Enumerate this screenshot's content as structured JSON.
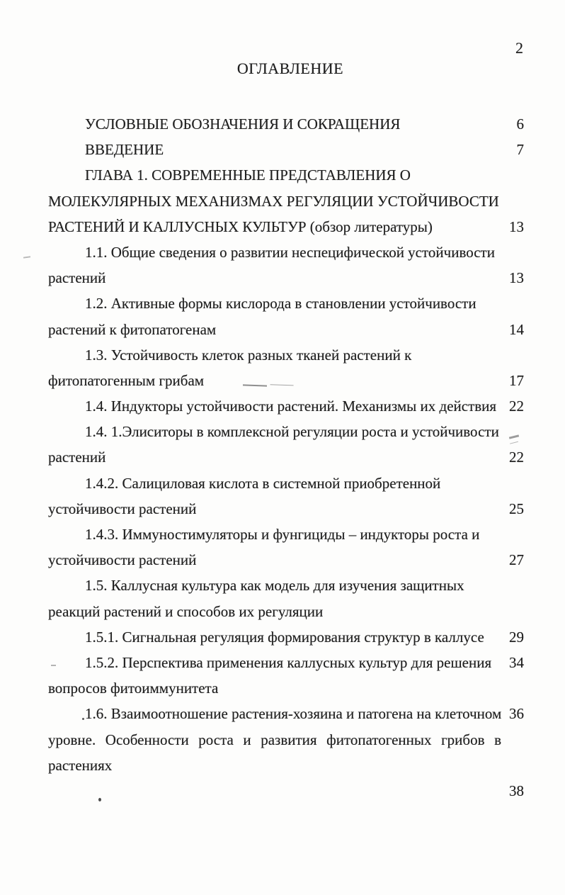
{
  "page": {
    "number": "2",
    "title": "ОГЛАВЛЕНИЕ"
  },
  "toc": {
    "lines": [
      {
        "text": "УСЛОВНЫЕ ОБОЗНАЧЕНИЯ И СОКРАЩЕНИЯ",
        "page": "6",
        "style": "indent"
      },
      {
        "text": "ВВЕДЕНИЕ",
        "page": "7",
        "style": "indent"
      },
      {
        "text": "ГЛАВА 1. СОВРЕМЕННЫЕ ПРЕДСТАВЛЕНИЯ О",
        "page": "",
        "style": "indent"
      },
      {
        "text": "МОЛЕКУЛЯРНЫХ МЕХАНИЗМАХ РЕГУЛЯЦИИ УСТОЙЧИВОСТИ",
        "page": "",
        "style": "flush"
      },
      {
        "text": "РАСТЕНИЙ И КАЛЛУСНЫХ КУЛЬТУР (обзор литературы)",
        "page": "13",
        "style": "flush"
      },
      {
        "text": "1.1. Общие сведения о развитии неспецифической устойчивости",
        "page": "",
        "style": "indent"
      },
      {
        "text": "растений",
        "page": "13",
        "style": "flush"
      },
      {
        "text": "1.2. Активные формы кислорода в становлении устойчивости",
        "page": "",
        "style": "indent"
      },
      {
        "text": "растений к фитопатогенам",
        "page": "14",
        "style": "flush"
      },
      {
        "text": "1.3. Устойчивость клеток разных тканей растений к",
        "page": "",
        "style": "indent"
      },
      {
        "text": "фитопатогенным грибам",
        "page": "17",
        "style": "flush"
      },
      {
        "text": "1.4. Индукторы устойчивости растений. Механизмы их действия",
        "page": "22",
        "style": "indent"
      },
      {
        "text": "1.4. 1.Элиситоры в комплексной регуляции роста и устойчивости",
        "page": "",
        "style": "indent"
      },
      {
        "text": "растений",
        "page": "22",
        "style": "flush"
      },
      {
        "text": "1.4.2. Салициловая кислота в системной приобретенной",
        "page": "",
        "style": "indent"
      },
      {
        "text": "устойчивости растений",
        "page": "25",
        "style": "flush"
      },
      {
        "text": "1.4.3. Иммуностимуляторы и фунгициды – индукторы роста и",
        "page": "",
        "style": "indent"
      },
      {
        "text": "устойчивости растений",
        "page": "27",
        "style": "flush"
      },
      {
        "text": "1.5. Каллусная культура как модель для изучения защитных",
        "page": "",
        "style": "indent"
      },
      {
        "text": "реакций растений и способов их регуляции",
        "page": "",
        "style": "flush"
      },
      {
        "text": "1.5.1. Сигнальная регуляция формирования структур в каллусе",
        "page": "29",
        "style": "indent"
      },
      {
        "text": "1.5.2. Перспектива применения каллусных культур для решения",
        "page": "34",
        "style": "indent"
      },
      {
        "text": "вопросов фитоиммунитета",
        "page": "",
        "style": "flush"
      },
      {
        "text": "1.6. Взаимоотношение растения-хозяина и патогена на клеточном",
        "page": "36",
        "style": "indent"
      },
      {
        "text": "уровне. Особенности роста и развития фитопатогенных грибов в",
        "page": "",
        "style": "justify"
      },
      {
        "text": "растениях",
        "page": "",
        "style": "flush"
      },
      {
        "text": "",
        "page": "38",
        "style": "flush"
      }
    ]
  }
}
